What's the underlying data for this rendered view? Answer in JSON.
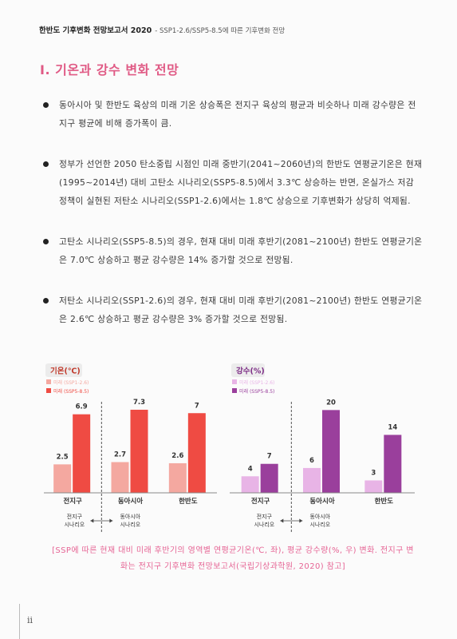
{
  "header": {
    "title": "한반도 기후변화 전망보고서 2020",
    "subtitle": "- SSP1-2.6/SSP5-8.5에 따른 기후변화 전망"
  },
  "section_title": "Ⅰ. 기온과 강수 변화 전망",
  "bullets": [
    "동아시아 및 한반도 육상의 미래 기온 상승폭은 전지구 육상의 평균과 비슷하나 미래 강수량은 전지구 평균에 비해 증가폭이 큼.",
    "정부가 선언한 2050 탄소중립 시점인 미래 중반기(2041~2060년)의 한반도 연평균기온은 현재(1995~2014년) 대비 고탄소 시나리오(SSP5-8.5)에서 3.3℃ 상승하는 반면, 온실가스 저감 정책이 실현된 저탄소 시나리오(SSP1-2.6)에서는 1.8℃ 상승으로 기후변화가 상당히 억제됨.",
    "고탄소 시나리오(SSP5-8.5)의 경우, 현재 대비 미래 후반기(2081~2100년) 한반도 연평균기온은 7.0℃ 상승하고 평균 강수량은 14% 증가할 것으로 전망됨.",
    "저탄소 시나리오(SSP1-2.6)의 경우, 현재 대비 미래 후반기(2081~2100년) 한반도 연평균기온은 2.6℃ 상승하고 평균 강수량은 3% 증가할 것으로 전망됨."
  ],
  "chart_data": [
    {
      "type": "bar",
      "title": "기온(℃)",
      "categories": [
        "전지구",
        "동아시아",
        "한반도"
      ],
      "series": [
        {
          "name": "미래 (SSP1-2.6)",
          "values": [
            2.5,
            2.7,
            2.6
          ],
          "color": "#f4a8a0"
        },
        {
          "name": "미래 (SSP5-8.5)",
          "values": [
            6.9,
            7.3,
            7.0
          ],
          "color": "#ef4b43"
        }
      ],
      "ylim": [
        0,
        8
      ],
      "title_color": "#c0392b",
      "scope_labels": [
        "전지구\n시나리오",
        "동아시아\n시나리오"
      ]
    },
    {
      "type": "bar",
      "title": "강수(%)",
      "categories": [
        "전지구",
        "동아시아",
        "한반도"
      ],
      "series": [
        {
          "name": "미래 (SSP1-2.6)",
          "values": [
            4,
            6,
            3
          ],
          "color": "#e8b4e6"
        },
        {
          "name": "미래 (SSP5-8.5)",
          "values": [
            7,
            20,
            14
          ],
          "color": "#9a3f9c"
        }
      ],
      "ylim": [
        0,
        22
      ],
      "title_color": "#7d2e86",
      "scope_labels": [
        "전지구\n시나리오",
        "동아시아\n시나리오"
      ]
    }
  ],
  "caption": "[SSP에 따른 현재 대비 미래 후반기의 영역별 연평균기온(℃, 좌), 평균 강수량(%, 우) 변화. 전지구 변화는 전지구 기후변화 전망보고서(국립기상과학원, 2020) 참고]",
  "page_number": "ii"
}
